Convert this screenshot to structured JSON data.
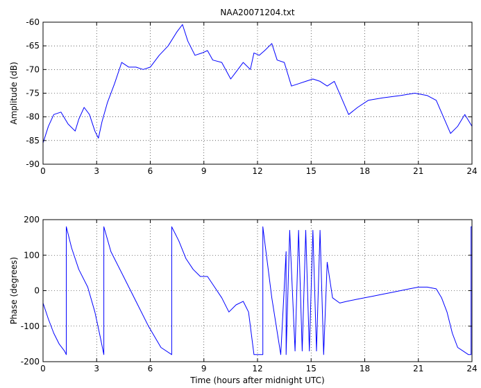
{
  "figure": {
    "title": "NAA20071204.txt"
  },
  "chart_data": [
    {
      "type": "line",
      "title": "NAA20071204.txt",
      "xlabel": "",
      "ylabel": "Amplitude (dB)",
      "xlim": [
        0,
        24
      ],
      "ylim": [
        -90,
        -60
      ],
      "xticks": [
        0,
        3,
        6,
        9,
        12,
        15,
        18,
        21,
        24
      ],
      "yticks": [
        -90,
        -85,
        -80,
        -75,
        -70,
        -65,
        -60
      ],
      "grid": true,
      "color": "#0000ff",
      "series": [
        {
          "x": [
            0,
            0.3,
            0.6,
            1.0,
            1.4,
            1.8,
            2.0,
            2.3,
            2.6,
            2.9,
            3.1,
            3.3,
            3.6,
            4.0,
            4.4,
            4.8,
            5.2,
            5.6,
            6.0,
            6.5,
            7.0,
            7.5,
            7.8,
            8.1,
            8.5,
            8.9,
            9.2,
            9.5,
            10.0,
            10.5,
            10.8,
            11.2,
            11.6,
            11.8,
            12.1,
            12.4,
            12.8,
            13.1,
            13.5,
            13.9,
            14.3,
            14.7,
            15.1,
            15.5,
            15.9,
            16.3,
            16.7,
            17.1,
            17.6,
            18.2,
            19.0,
            20.0,
            20.8,
            21.5,
            22.0,
            22.4,
            22.8,
            23.2,
            23.6,
            24.0
          ],
          "y": [
            -85.5,
            -82,
            -79.5,
            -79,
            -81.5,
            -83,
            -80.5,
            -78,
            -79.5,
            -83,
            -84.5,
            -81,
            -77,
            -73,
            -68.5,
            -69.5,
            -69.5,
            -70,
            -69.5,
            -67,
            -65,
            -62,
            -60.5,
            -64,
            -67,
            -66.5,
            -66,
            -68,
            -68.5,
            -72,
            -70.5,
            -68.5,
            -70,
            -66.5,
            -67,
            -66,
            -64.5,
            -68,
            -68.5,
            -73.5,
            -73,
            -72.5,
            -72,
            -72.5,
            -73.5,
            -72.5,
            -76,
            -79.5,
            -78,
            -76.5,
            -76,
            -75.5,
            -75,
            -75.5,
            -76.5,
            -80,
            -83.5,
            -82,
            -79.5,
            -82
          ]
        }
      ]
    },
    {
      "type": "line",
      "title": "",
      "xlabel": "Time (hours after midnight UTC)",
      "ylabel": "Phase (degrees)",
      "xlim": [
        0,
        24
      ],
      "ylim": [
        -200,
        200
      ],
      "xticks": [
        0,
        3,
        6,
        9,
        12,
        15,
        18,
        21,
        24
      ],
      "yticks": [
        -200,
        -100,
        0,
        100,
        200
      ],
      "grid": true,
      "color": "#0000ff",
      "series": [
        {
          "x": [
            0,
            0.3,
            0.6,
            0.9,
            1.2,
            1.3,
            1.3,
            1.6,
            2.0,
            2.5,
            2.9,
            3.2,
            3.4,
            3.4,
            3.8,
            4.5,
            5.2,
            5.9,
            6.6,
            7.2,
            7.2,
            7.6,
            8.0,
            8.4,
            8.8,
            9.2,
            9.6,
            10.0,
            10.4,
            10.8,
            11.2,
            11.5,
            11.8,
            12.3,
            12.3,
            12.8,
            13.3,
            13.6,
            13.6,
            13.8,
            14.1,
            14.3,
            14.5,
            14.7,
            14.9,
            15.1,
            15.3,
            15.5,
            15.7,
            15.9,
            16.2,
            16.6,
            17.0,
            17.5,
            18.0,
            18.5,
            19.0,
            19.5,
            20.0,
            20.5,
            21.0,
            21.5,
            22.0,
            22.3,
            22.6,
            22.9,
            23.2,
            23.5,
            23.8,
            23.95,
            23.95,
            24.0
          ],
          "y": [
            -35,
            -80,
            -120,
            -150,
            -170,
            -180,
            180,
            120,
            60,
            10,
            -60,
            -130,
            -180,
            180,
            110,
            40,
            -30,
            -100,
            -160,
            -180,
            180,
            140,
            90,
            60,
            40,
            40,
            10,
            -20,
            -60,
            -40,
            -30,
            -60,
            -180,
            -180,
            180,
            -20,
            -180,
            110,
            -180,
            170,
            -170,
            170,
            -170,
            170,
            -170,
            170,
            -170,
            170,
            -180,
            80,
            -20,
            -35,
            -30,
            -25,
            -20,
            -15,
            -10,
            -5,
            0,
            5,
            10,
            10,
            5,
            -20,
            -60,
            -120,
            -160,
            -170,
            -180,
            -180,
            180,
            180
          ]
        }
      ]
    }
  ]
}
